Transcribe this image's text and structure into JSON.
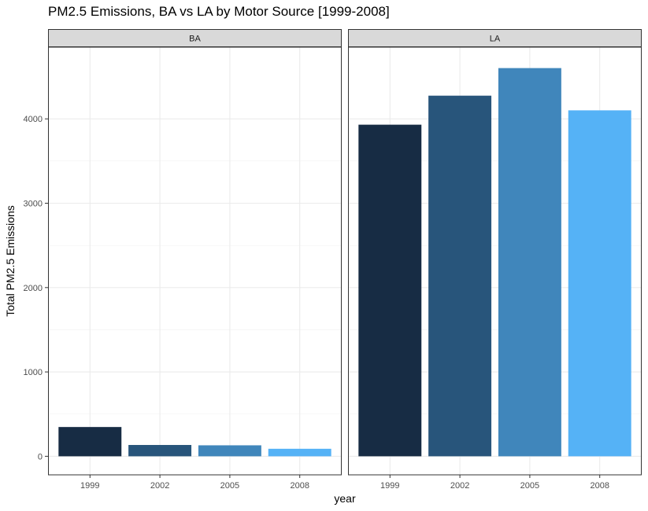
{
  "chart_data": {
    "type": "bar",
    "title": "PM2.5 Emissions, BA vs LA by Motor Source [1999-2008]",
    "xlabel": "year",
    "ylabel": "Total PM2.5 Emissions",
    "categories": [
      "1999",
      "2002",
      "2005",
      "2008"
    ],
    "bar_colors": [
      "#172c44",
      "#28557b",
      "#4086bb",
      "#55b2f6"
    ],
    "ylim": [
      -220,
      4850
    ],
    "yticks": [
      0,
      1000,
      2000,
      3000,
      4000
    ],
    "grid": true,
    "legend": "none",
    "panels": [
      {
        "name": "BA",
        "values": [
          347,
          134,
          130,
          89
        ]
      },
      {
        "name": "LA",
        "values": [
          3931,
          4275,
          4602,
          4101
        ]
      }
    ]
  }
}
